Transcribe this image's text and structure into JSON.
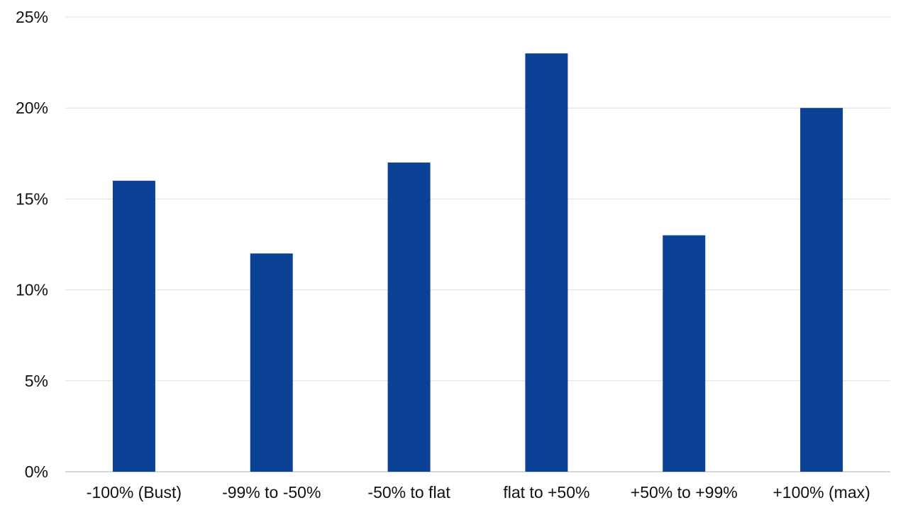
{
  "chart_data": {
    "type": "bar",
    "categories": [
      "-100% (Bust)",
      "-99% to -50%",
      "-50% to flat",
      "flat to +50%",
      "+50% to +99%",
      "+100% (max)"
    ],
    "values": [
      16,
      12,
      17,
      23,
      13,
      20
    ],
    "title": "",
    "xlabel": "",
    "ylabel": "",
    "ylim": [
      0,
      25
    ],
    "yticks": [
      "0%",
      "5%",
      "10%",
      "15%",
      "20%",
      "25%"
    ],
    "ytick_values": [
      0,
      5,
      10,
      15,
      20,
      25
    ],
    "grid": true,
    "legend": "none",
    "bar_color": "#0b4295"
  }
}
